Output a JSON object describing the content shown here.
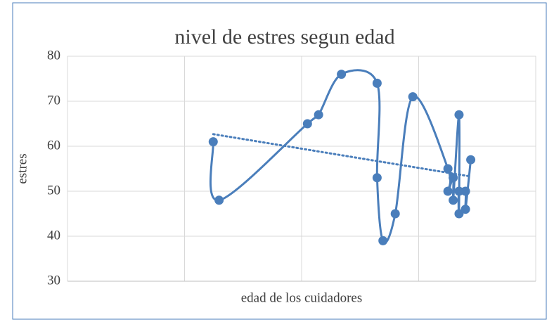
{
  "chart_data": {
    "type": "scatter-smooth",
    "title": "nivel de estres segun edad",
    "x_label": "edad de los cuidadores",
    "y_label": "estres",
    "x": [
      24.9,
      25.9,
      41.0,
      42.9,
      46.8,
      52.9,
      52.9,
      53.9,
      56.0,
      59.0,
      65.0,
      65.0,
      65.9,
      65.9,
      66.9,
      66.9,
      66.9,
      68.0,
      68.0,
      68.9
    ],
    "values": [
      61,
      48,
      65,
      67,
      76,
      74,
      53,
      39,
      45,
      71,
      55,
      50,
      53,
      48,
      67,
      45,
      50,
      50,
      46,
      57
    ],
    "color": "#4a7ebb",
    "trendline": true,
    "xlim": [
      0,
      80
    ],
    "xticks": [
      0,
      20,
      40,
      60,
      80
    ],
    "ylim": [
      30,
      80
    ],
    "yticks": [
      30,
      40,
      50,
      60,
      70,
      80
    ],
    "grid": true
  }
}
